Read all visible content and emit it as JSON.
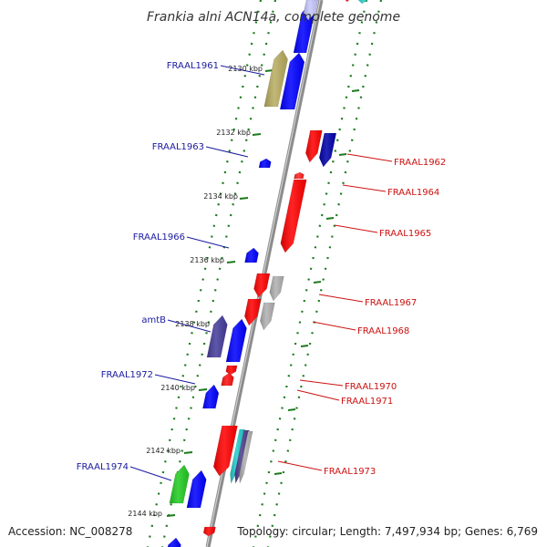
{
  "title": "Frankia alni ACN14a, complete genome",
  "accession_text": "Accession: NC_008278",
  "topology_text": "Topology: circular; Length: 7,497,934 bp; Genes: 6,769",
  "colors": {
    "backbone": "#8c8c8c",
    "ticks": "#1b7a1b",
    "left_label": "#1a1aa0",
    "right_label": "#cc1111"
  },
  "kbp_ticks": [
    "2130 kbp",
    "2132 kbp",
    "2134 kbp",
    "2136 kbp",
    "2138 kbp",
    "2140 kbp",
    "2142 kbp",
    "2144 kbp"
  ],
  "left_labels": [
    "FRAAL1961",
    "FRAAL1963",
    "FRAAL1966",
    "amtB",
    "FRAAL1972",
    "FRAAL1974"
  ],
  "right_labels": [
    "FRAAL1962",
    "FRAAL1964",
    "FRAAL1965",
    "FRAAL1967",
    "FRAAL1968",
    "FRAAL1970",
    "FRAAL1971",
    "FRAAL1973"
  ]
}
